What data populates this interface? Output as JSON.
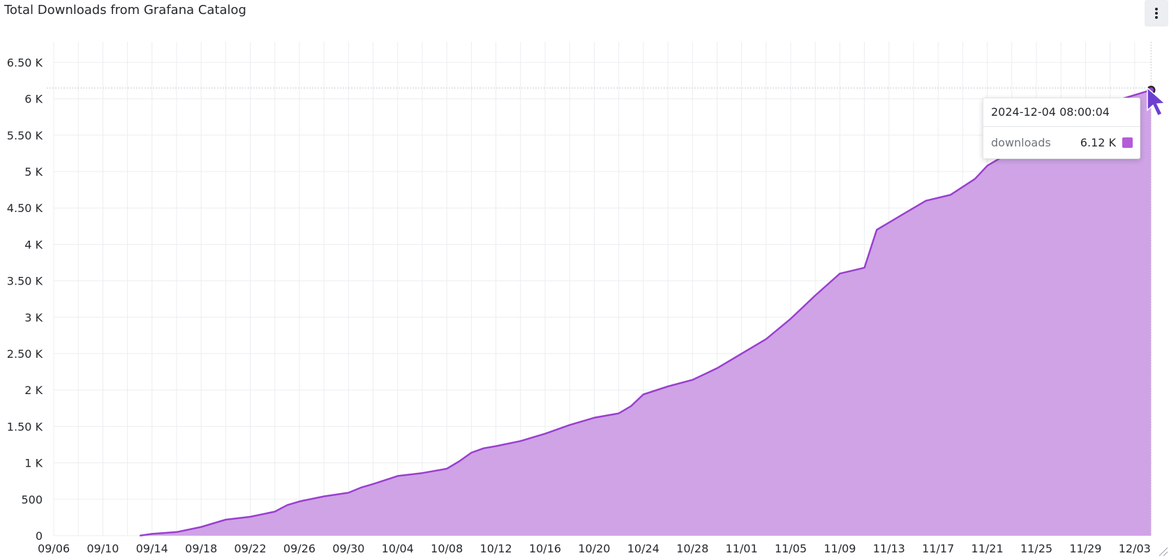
{
  "panel": {
    "title": "Total Downloads from Grafana Catalog",
    "menu_icon": "vertical-ellipsis-icon"
  },
  "colors": {
    "series_line": "#9b3fcf",
    "series_fill": "#cfa3e6",
    "grid": "#ebedf0",
    "text": "#24292e"
  },
  "tooltip": {
    "time": "2024-12-04 08:00:04",
    "series_name": "downloads",
    "value": "6.12 K"
  },
  "chart_data": {
    "type": "area",
    "title": "Total Downloads from Grafana Catalog",
    "xlabel": "",
    "ylabel": "",
    "grid": true,
    "legend": "none",
    "x_ticks": [
      "09/06",
      "09/10",
      "09/14",
      "09/18",
      "09/22",
      "09/26",
      "09/30",
      "10/04",
      "10/08",
      "10/12",
      "10/16",
      "10/20",
      "10/24",
      "10/28",
      "11/01",
      "11/05",
      "11/09",
      "11/13",
      "11/17",
      "11/21",
      "11/25",
      "11/29",
      "12/03"
    ],
    "y_ticks": [
      "0",
      "500",
      "1 K",
      "1.50 K",
      "2 K",
      "2.50 K",
      "3 K",
      "3.50 K",
      "4 K",
      "4.50 K",
      "5 K",
      "5.50 K",
      "6 K",
      "6.50 K"
    ],
    "ylim": [
      0,
      6800
    ],
    "xlim": [
      "2024-09-06",
      "2024-12-05"
    ],
    "series": [
      {
        "name": "downloads",
        "x": [
          "2024-09-13",
          "2024-09-14",
          "2024-09-16",
          "2024-09-18",
          "2024-09-20",
          "2024-09-22",
          "2024-09-24",
          "2024-09-25",
          "2024-09-26",
          "2024-09-28",
          "2024-09-30",
          "2024-10-01",
          "2024-10-02",
          "2024-10-04",
          "2024-10-06",
          "2024-10-08",
          "2024-10-09",
          "2024-10-10",
          "2024-10-11",
          "2024-10-12",
          "2024-10-14",
          "2024-10-16",
          "2024-10-18",
          "2024-10-20",
          "2024-10-22",
          "2024-10-23",
          "2024-10-24",
          "2024-10-26",
          "2024-10-28",
          "2024-10-30",
          "2024-11-01",
          "2024-11-03",
          "2024-11-05",
          "2024-11-07",
          "2024-11-09",
          "2024-11-11",
          "2024-11-12",
          "2024-11-14",
          "2024-11-16",
          "2024-11-18",
          "2024-11-20",
          "2024-11-21",
          "2024-11-22",
          "2024-11-24",
          "2024-11-26",
          "2024-11-28",
          "2024-11-30",
          "2024-12-02",
          "2024-12-04"
        ],
        "values": [
          0,
          25,
          50,
          120,
          220,
          260,
          330,
          420,
          470,
          540,
          590,
          660,
          710,
          820,
          860,
          920,
          1020,
          1140,
          1200,
          1230,
          1300,
          1400,
          1520,
          1620,
          1680,
          1780,
          1940,
          2050,
          2140,
          2300,
          2500,
          2700,
          2980,
          3300,
          3600,
          3680,
          4200,
          4400,
          4600,
          4680,
          4900,
          5080,
          5180,
          5300,
          5500,
          5700,
          5850,
          6000,
          6120
        ]
      }
    ]
  }
}
